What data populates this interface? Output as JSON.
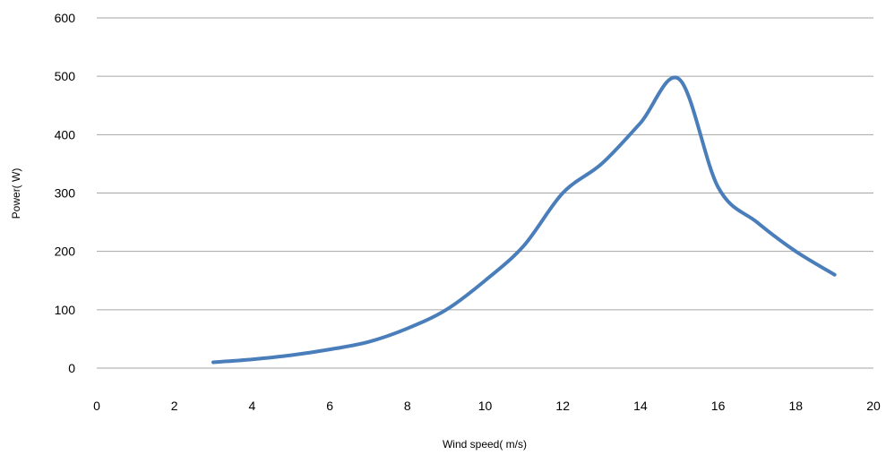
{
  "chart_data": {
    "type": "line",
    "title": "",
    "xlabel": "Wind speed( m/s)",
    "ylabel": "Power( W)",
    "xlim": [
      0,
      20
    ],
    "ylim": [
      0,
      600
    ],
    "xticks": [
      0,
      2,
      4,
      6,
      8,
      10,
      12,
      14,
      16,
      18,
      20
    ],
    "yticks": [
      0,
      100,
      200,
      300,
      400,
      500,
      600
    ],
    "grid": "horizontal",
    "legend": "none",
    "series": [
      {
        "color": "#4a7ebb",
        "smooth": true,
        "x": [
          3,
          4,
          5,
          6,
          7,
          8,
          9,
          10,
          11,
          12,
          13,
          14,
          15,
          16,
          17,
          18,
          19
        ],
        "y": [
          10,
          15,
          22,
          32,
          45,
          68,
          100,
          150,
          210,
          300,
          350,
          420,
          495,
          310,
          250,
          200,
          160
        ]
      }
    ]
  }
}
